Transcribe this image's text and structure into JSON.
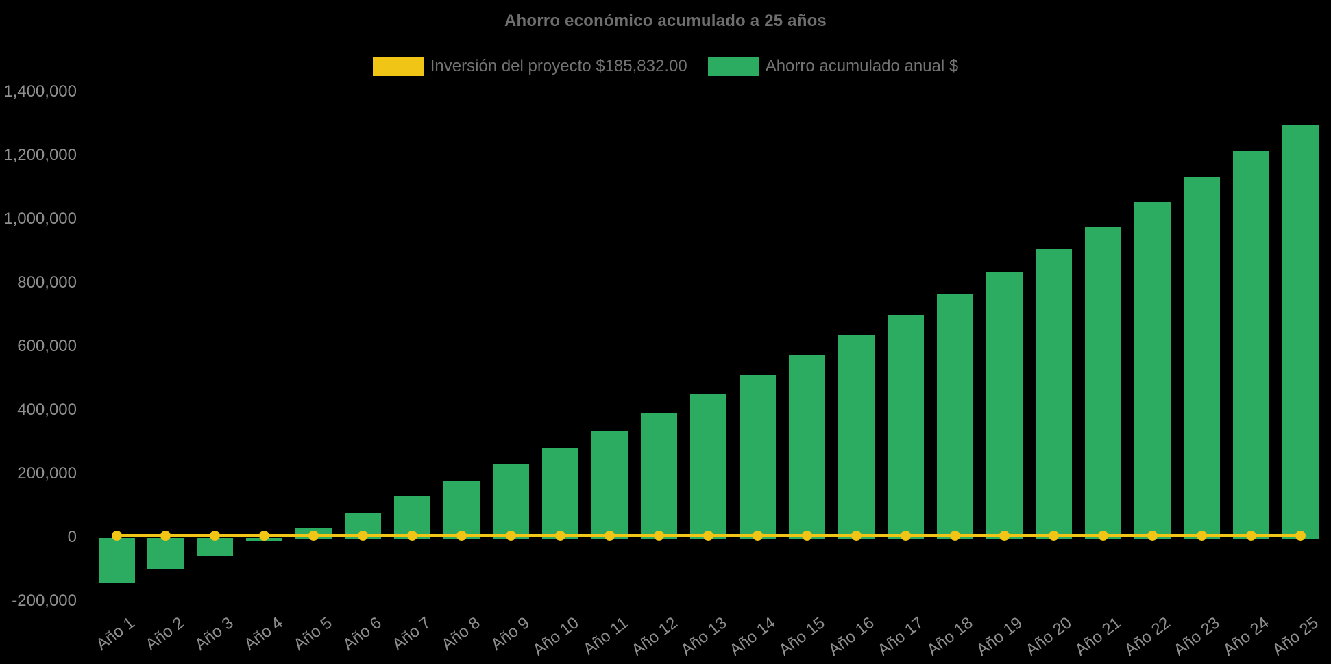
{
  "chart_data": {
    "type": "bar",
    "title": "Ahorro económico acumulado a 25 años",
    "categories": [
      "Año 1",
      "Año 2",
      "Año 3",
      "Año 4",
      "Año 5",
      "Año 6",
      "Año 7",
      "Año 8",
      "Año 9",
      "Año 10",
      "Año 11",
      "Año 12",
      "Año 13",
      "Año 14",
      "Año 15",
      "Año 16",
      "Año 17",
      "Año 18",
      "Año 19",
      "Año 20",
      "Año 21",
      "Año 22",
      "Año 23",
      "Año 24",
      "Año 25"
    ],
    "series": [
      {
        "name": "Inversión del proyecto $185,832.00",
        "type": "line",
        "color": "#F0C515",
        "marker": "circle",
        "values": [
          0,
          0,
          0,
          0,
          0,
          0,
          0,
          0,
          0,
          0,
          0,
          0,
          0,
          0,
          0,
          0,
          0,
          0,
          0,
          0,
          0,
          0,
          0,
          0,
          0
        ]
      },
      {
        "name": "Ahorro acumulado anual $",
        "type": "bar",
        "color": "#2BAC60",
        "values": [
          -145000,
          -102000,
          -60000,
          -14000,
          30000,
          77000,
          128000,
          177000,
          229000,
          282000,
          336000,
          391000,
          449000,
          510000,
          572000,
          636000,
          698000,
          765000,
          833000,
          905000,
          977000,
          1053000,
          1131000,
          1212000,
          1295000
        ]
      }
    ],
    "xlabel": "",
    "ylabel": "",
    "ylim": [
      -270000,
      1470000
    ],
    "yticks": [
      -200000,
      0,
      200000,
      400000,
      600000,
      800000,
      1000000,
      1200000,
      1400000
    ],
    "ytick_labels": [
      "-200,000",
      "0",
      "200,000",
      "400,000",
      "600,000",
      "800,000",
      "1,000,000",
      "1,200,000",
      "1,400,000"
    ],
    "grid": false,
    "legend_position": "top",
    "background": "#000000",
    "investment_value_text": "$185,832.00"
  }
}
